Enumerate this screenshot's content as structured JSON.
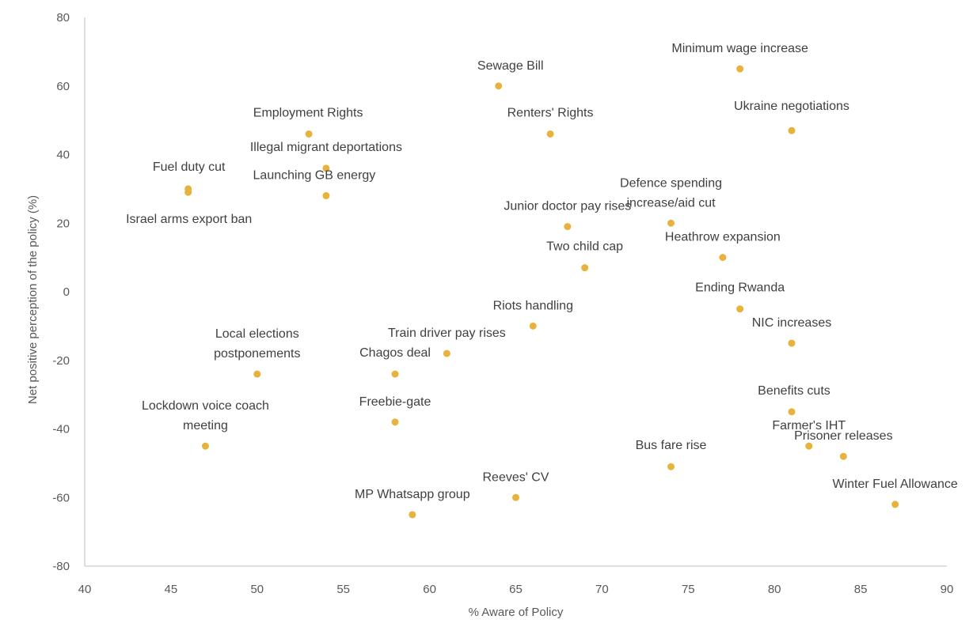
{
  "chart_data": {
    "type": "scatter",
    "xlabel": "% Aware of Policy",
    "ylabel": "Net positive perception of the policy (%)",
    "xlim": [
      40,
      90
    ],
    "ylim": [
      -80,
      80
    ],
    "x_ticks": [
      "40",
      "45",
      "50",
      "55",
      "60",
      "65",
      "70",
      "75",
      "80",
      "85",
      "90"
    ],
    "y_ticks": [
      "80",
      "60",
      "40",
      "20",
      "0",
      "-20",
      "-40",
      "-60",
      "-80"
    ],
    "grid": false,
    "legend": "none",
    "marker_color": "#E8B33C",
    "points": [
      {
        "label": "Minimum wage increase",
        "x": 78,
        "y": 65
      },
      {
        "label": "Sewage Bill",
        "x": 64,
        "y": 60
      },
      {
        "label": "Ukraine negotiations",
        "x": 81,
        "y": 47
      },
      {
        "label": "Employment Rights",
        "x": 53,
        "y": 46
      },
      {
        "label": "Renters' Rights",
        "x": 67,
        "y": 46
      },
      {
        "label": "Illegal migrant deportations",
        "x": 54,
        "y": 36
      },
      {
        "label": "Fuel duty cut",
        "x": 46,
        "y": 30
      },
      {
        "label": "Israel arms export ban",
        "x": 46,
        "y": 29
      },
      {
        "label": "Launching GB energy",
        "x": 54,
        "y": 28
      },
      {
        "label": "Defence spending increase/aid cut",
        "x": 74,
        "y": 20
      },
      {
        "label": "Junior doctor pay rises",
        "x": 68,
        "y": 19
      },
      {
        "label": "Heathrow expansion",
        "x": 77,
        "y": 10
      },
      {
        "label": "Two child cap",
        "x": 69,
        "y": 7
      },
      {
        "label": "Ending Rwanda",
        "x": 78,
        "y": -5
      },
      {
        "label": "Riots handling",
        "x": 66,
        "y": -10
      },
      {
        "label": "NIC increases",
        "x": 81,
        "y": -15
      },
      {
        "label": "Train driver pay rises",
        "x": 61,
        "y": -18
      },
      {
        "label": "Local elections postponements",
        "x": 50,
        "y": -24
      },
      {
        "label": "Chagos deal",
        "x": 58,
        "y": -24
      },
      {
        "label": "Benefits cuts",
        "x": 81,
        "y": -35
      },
      {
        "label": "Freebie-gate",
        "x": 58,
        "y": -38
      },
      {
        "label": "Lockdown voice coach meeting",
        "x": 47,
        "y": -45
      },
      {
        "label": "Farmer's IHT",
        "x": 82,
        "y": -45
      },
      {
        "label": "Prisoner releases",
        "x": 84,
        "y": -48
      },
      {
        "label": "Bus fare rise",
        "x": 74,
        "y": -51
      },
      {
        "label": "Reeves' CV",
        "x": 65,
        "y": -60
      },
      {
        "label": "Winter Fuel Allowance",
        "x": 87,
        "y": -62
      },
      {
        "label": "MP Whatsapp group",
        "x": 59,
        "y": -65
      }
    ]
  }
}
